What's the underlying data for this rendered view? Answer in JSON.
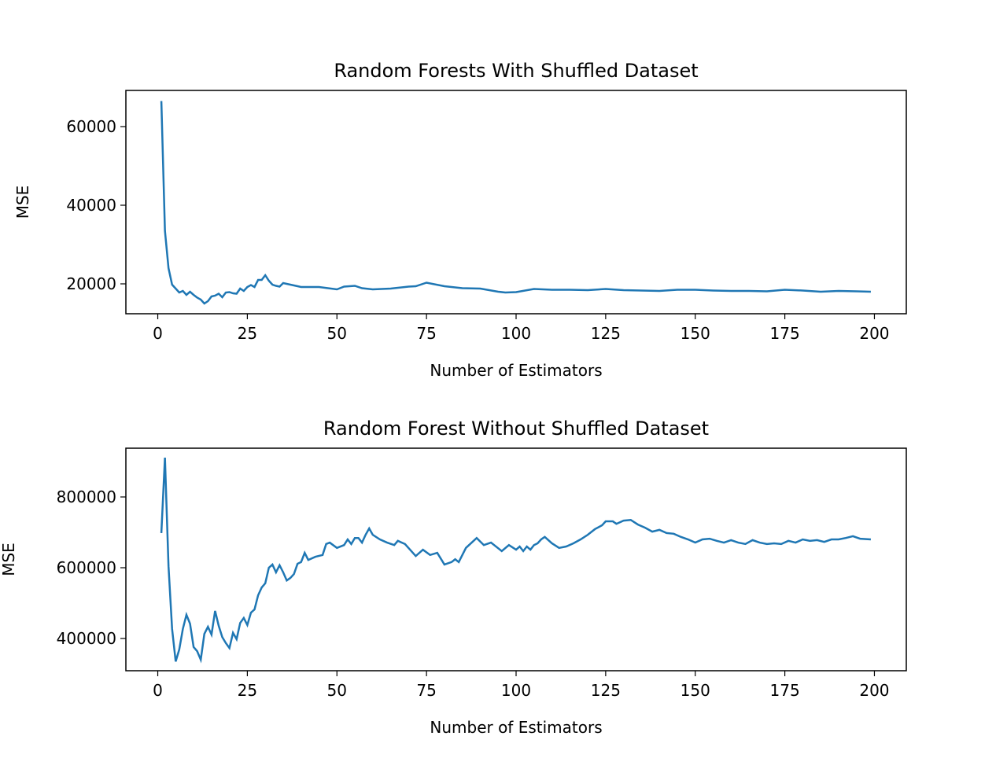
{
  "chart_data": [
    {
      "type": "line",
      "title": "Random Forests With Shuffled Dataset",
      "xlabel": "Number of Estimators",
      "ylabel": "MSE",
      "xlim": [
        -8.9,
        208.9
      ],
      "ylim": [
        12400,
        69200
      ],
      "xticks": [
        0,
        25,
        50,
        75,
        100,
        125,
        150,
        175,
        200
      ],
      "yticks": [
        20000,
        40000,
        60000
      ],
      "series": [
        {
          "color": "#1f77b4",
          "x": [
            1,
            2,
            3,
            4,
            5,
            6,
            7,
            8,
            9,
            10,
            11,
            12,
            13,
            14,
            15,
            16,
            17,
            18,
            19,
            20,
            21,
            22,
            23,
            24,
            25,
            26,
            27,
            28,
            29,
            30,
            31,
            32,
            33,
            34,
            35,
            40,
            45,
            50,
            52,
            55,
            57,
            60,
            65,
            70,
            72,
            75,
            80,
            85,
            90,
            95,
            97,
            100,
            105,
            110,
            115,
            120,
            125,
            130,
            135,
            140,
            145,
            150,
            155,
            160,
            165,
            170,
            175,
            180,
            185,
            190,
            195,
            199
          ],
          "values": [
            66500,
            33500,
            24000,
            19800,
            18800,
            17800,
            18200,
            17200,
            18000,
            17200,
            16500,
            16000,
            15000,
            15600,
            16800,
            17000,
            17500,
            16600,
            17800,
            17900,
            17600,
            17500,
            18800,
            18200,
            19200,
            19700,
            19200,
            21000,
            21000,
            22200,
            20800,
            19800,
            19500,
            19300,
            20200,
            19200,
            19200,
            18600,
            19300,
            19500,
            18900,
            18600,
            18800,
            19300,
            19400,
            20300,
            19400,
            18900,
            18800,
            18000,
            17800,
            17900,
            18700,
            18500,
            18500,
            18400,
            18700,
            18400,
            18300,
            18200,
            18500,
            18500,
            18300,
            18200,
            18200,
            18100,
            18500,
            18300,
            18000,
            18200,
            18100,
            18000
          ]
        }
      ]
    },
    {
      "type": "line",
      "title": "Random Forest Without Shuffled Dataset",
      "xlabel": "Number of Estimators",
      "ylabel": "MSE",
      "xlim": [
        -8.9,
        208.9
      ],
      "ylim": [
        308900,
        937800
      ],
      "xticks": [
        0,
        25,
        50,
        75,
        100,
        125,
        150,
        175,
        200
      ],
      "yticks": [
        400000,
        600000,
        800000
      ],
      "series": [
        {
          "color": "#1f77b4",
          "x": [
            1,
            2,
            3,
            4,
            5,
            6,
            7,
            8,
            9,
            10,
            11,
            12,
            13,
            14,
            15,
            16,
            17,
            18,
            19,
            20,
            21,
            22,
            23,
            24,
            25,
            26,
            27,
            28,
            29,
            30,
            31,
            32,
            33,
            34,
            35,
            36,
            37,
            38,
            39,
            40,
            41,
            42,
            44,
            46,
            47,
            48,
            50,
            52,
            53,
            54,
            55,
            56,
            57,
            58,
            59,
            60,
            62,
            64,
            66,
            67,
            69,
            72,
            74,
            76,
            78,
            80,
            82,
            83,
            84,
            86,
            89,
            91,
            93,
            96,
            98,
            100,
            101,
            102,
            103,
            104,
            105,
            106,
            107,
            108,
            110,
            112,
            114,
            116,
            118,
            120,
            122,
            124,
            125,
            127,
            128,
            130,
            132,
            134,
            136,
            138,
            140,
            142,
            144,
            146,
            148,
            150,
            152,
            154,
            156,
            158,
            160,
            162,
            164,
            166,
            168,
            170,
            172,
            174,
            176,
            178,
            180,
            182,
            184,
            186,
            188,
            190,
            192,
            194,
            196,
            199
          ],
          "values": [
            698000,
            911000,
            604000,
            427000,
            335000,
            369000,
            427000,
            467000,
            442000,
            376000,
            364000,
            340000,
            413000,
            433000,
            411000,
            478000,
            436000,
            404000,
            387000,
            373000,
            416000,
            398000,
            444000,
            458000,
            438000,
            473000,
            482000,
            522000,
            544000,
            556000,
            600000,
            609000,
            587000,
            607000,
            587000,
            564000,
            571000,
            582000,
            611000,
            616000,
            642000,
            622000,
            631000,
            636000,
            667000,
            671000,
            656000,
            664000,
            680000,
            667000,
            684000,
            684000,
            671000,
            693000,
            711000,
            693000,
            680000,
            671000,
            664000,
            676000,
            667000,
            633000,
            651000,
            636000,
            642000,
            609000,
            616000,
            624000,
            616000,
            656000,
            684000,
            664000,
            671000,
            647000,
            664000,
            651000,
            660000,
            647000,
            660000,
            651000,
            664000,
            669000,
            680000,
            687000,
            669000,
            656000,
            660000,
            669000,
            680000,
            693000,
            709000,
            720000,
            731000,
            731000,
            724000,
            733000,
            735000,
            722000,
            713000,
            702000,
            707000,
            698000,
            696000,
            687000,
            680000,
            671000,
            680000,
            682000,
            676000,
            671000,
            678000,
            671000,
            667000,
            678000,
            671000,
            667000,
            669000,
            667000,
            676000,
            671000,
            680000,
            676000,
            678000,
            673000,
            680000,
            680000,
            684000,
            689000,
            682000,
            680000
          ]
        }
      ]
    }
  ]
}
